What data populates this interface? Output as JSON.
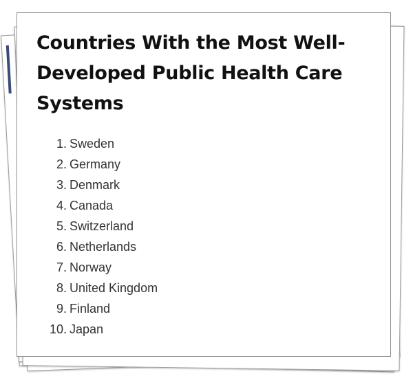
{
  "document": {
    "title": "Countries With the Most Well-Developed Public Health Care Systems",
    "items": [
      {
        "num": "1.",
        "name": "Sweden"
      },
      {
        "num": "2.",
        "name": "Germany"
      },
      {
        "num": "3.",
        "name": "Denmark"
      },
      {
        "num": "4.",
        "name": "Canada"
      },
      {
        "num": "5.",
        "name": "Switzerland"
      },
      {
        "num": "6.",
        "name": "Netherlands"
      },
      {
        "num": "7.",
        "name": "Norway"
      },
      {
        "num": "8.",
        "name": "United Kingdom"
      },
      {
        "num": "9.",
        "name": "Finland"
      },
      {
        "num": "10.",
        "name": "Japan"
      }
    ]
  },
  "colors": {
    "stripe_blue": "#3b4a7a",
    "stripe_gold": "#8a7a10"
  }
}
